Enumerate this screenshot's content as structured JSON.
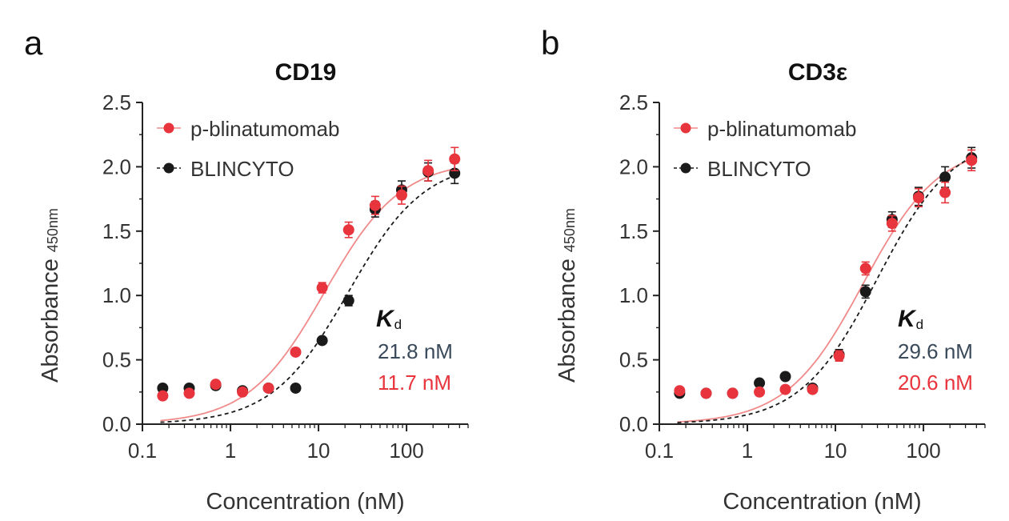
{
  "figure": {
    "kd_symbol": "K",
    "kd_subscript": "d"
  },
  "colors": {
    "p_blinatumomab": "#e8343c",
    "p_blinatumomab_line": "#f08a8a",
    "blincyto": "#1a1a1a",
    "kd_blincyto_text": "#3a4a5a",
    "kd_red_text": "#e8343c"
  },
  "chart_data": [
    {
      "panel_label": "a",
      "type": "scatter",
      "title": "CD19",
      "xlabel": "Concentration (nM)",
      "ylabel": "Absorbance",
      "ylabel_sub": "450nm",
      "xscale": "log",
      "xlim": [
        0.1,
        500
      ],
      "ylim": [
        0,
        2.5
      ],
      "xticks": [
        0.1,
        1,
        10,
        100
      ],
      "xtick_labels": [
        "0.1",
        "1",
        "10",
        "100"
      ],
      "yticks": [
        0,
        0.5,
        1,
        1.5,
        2,
        2.5
      ],
      "ytick_labels": [
        "0.0",
        "0.5",
        "1.0",
        "1.5",
        "2.0",
        "2.5"
      ],
      "legend_position": "top-left",
      "series": [
        {
          "name": "p-blinatumomab",
          "color": "#e8343c",
          "line_style": "solid",
          "x": [
            0.17,
            0.34,
            0.68,
            1.37,
            2.7,
            5.5,
            11,
            22,
            44,
            88,
            176,
            352
          ],
          "y": [
            0.22,
            0.24,
            0.31,
            0.25,
            0.28,
            0.56,
            1.06,
            1.51,
            1.7,
            1.78,
            1.97,
            2.06
          ],
          "err": [
            0.02,
            0.02,
            0.03,
            0.02,
            0.02,
            0.02,
            0.04,
            0.06,
            0.07,
            0.07,
            0.08,
            0.09
          ],
          "fit": {
            "bottom": 0.0,
            "top": 2.05,
            "ec50": 11.7,
            "hill": 1.0
          }
        },
        {
          "name": "BLINCYTO",
          "color": "#1a1a1a",
          "line_style": "dashed",
          "x": [
            0.17,
            0.34,
            0.68,
            1.37,
            2.7,
            5.5,
            11,
            22,
            44,
            88,
            176,
            352
          ],
          "y": [
            0.28,
            0.28,
            0.3,
            0.26,
            0.28,
            0.28,
            0.65,
            0.96,
            1.67,
            1.82,
            1.96,
            1.95
          ],
          "err": [
            0.02,
            0.02,
            0.02,
            0.02,
            0.02,
            0.02,
            0.03,
            0.04,
            0.06,
            0.07,
            0.07,
            0.08
          ],
          "fit": {
            "bottom": 0.0,
            "top": 2.05,
            "ec50": 21.8,
            "hill": 1.0
          }
        }
      ],
      "kd_values": [
        "21.8 nM",
        "11.7 nM"
      ]
    },
    {
      "panel_label": "b",
      "type": "scatter",
      "title": "CD3ε",
      "xlabel": "Concentration (nM)",
      "ylabel": "Absorbance",
      "ylabel_sub": "450nm",
      "xscale": "log",
      "xlim": [
        0.1,
        500
      ],
      "ylim": [
        0,
        2.5
      ],
      "xticks": [
        0.1,
        1,
        10,
        100
      ],
      "xtick_labels": [
        "0.1",
        "1",
        "10",
        "100"
      ],
      "yticks": [
        0,
        0.5,
        1,
        1.5,
        2,
        2.5
      ],
      "ytick_labels": [
        "0.0",
        "0.5",
        "1.0",
        "1.5",
        "2.0",
        "2.5"
      ],
      "legend_position": "top-left",
      "series": [
        {
          "name": "p-blinatumomab",
          "color": "#e8343c",
          "line_style": "solid",
          "x": [
            0.17,
            0.34,
            0.68,
            1.37,
            2.7,
            5.5,
            11,
            22,
            44,
            88,
            176,
            352
          ],
          "y": [
            0.26,
            0.24,
            0.24,
            0.25,
            0.27,
            0.27,
            0.53,
            1.21,
            1.56,
            1.76,
            1.8,
            2.05
          ],
          "err": [
            0.02,
            0.02,
            0.02,
            0.02,
            0.02,
            0.02,
            0.04,
            0.05,
            0.06,
            0.07,
            0.08,
            0.08
          ],
          "fit": {
            "bottom": 0.0,
            "top": 2.18,
            "ec50": 20.6,
            "hill": 1.0
          }
        },
        {
          "name": "BLINCYTO",
          "color": "#1a1a1a",
          "line_style": "dashed",
          "x": [
            0.17,
            0.34,
            0.68,
            1.37,
            2.7,
            5.5,
            11,
            22,
            44,
            88,
            176,
            352
          ],
          "y": [
            0.24,
            0.24,
            0.24,
            0.32,
            0.37,
            0.28,
            0.54,
            1.03,
            1.59,
            1.77,
            1.92,
            2.07
          ],
          "err": [
            0.02,
            0.02,
            0.02,
            0.02,
            0.02,
            0.02,
            0.04,
            0.05,
            0.06,
            0.07,
            0.08,
            0.08
          ],
          "fit": {
            "bottom": 0.0,
            "top": 2.25,
            "ec50": 29.6,
            "hill": 1.0
          }
        }
      ],
      "kd_values": [
        "29.6 nM",
        "20.6 nM"
      ]
    }
  ]
}
